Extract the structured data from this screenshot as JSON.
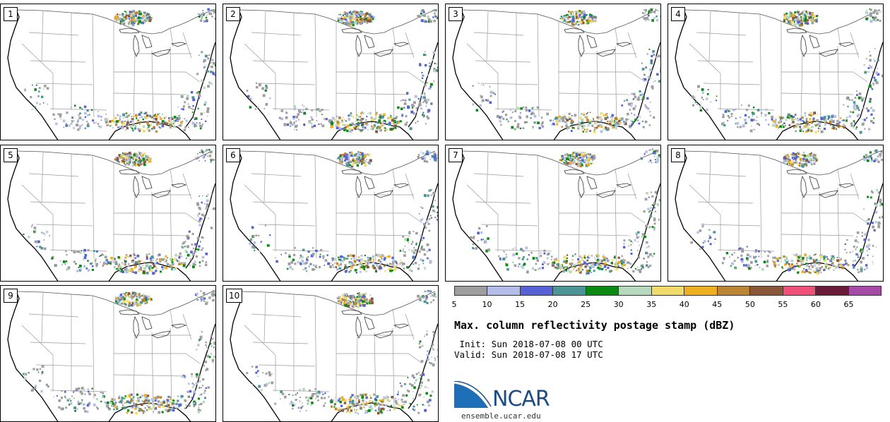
{
  "panels": [
    "1",
    "2",
    "3",
    "4",
    "5",
    "6",
    "7",
    "8",
    "9",
    "10"
  ],
  "colorbar": {
    "colors": [
      "#9e9e9e",
      "#b3bde8",
      "#5462d6",
      "#4c9496",
      "#0a8a12",
      "#b6d8bd",
      "#f0dc6a",
      "#eeb020",
      "#bb8634",
      "#8a5738",
      "#f04f77",
      "#6a1b3a",
      "#a64aa8"
    ],
    "ticks": [
      "5",
      "10",
      "15",
      "20",
      "25",
      "30",
      "35",
      "40",
      "45",
      "50",
      "55",
      "60",
      "65"
    ]
  },
  "title": "Max. column reflectivity postage stamp (dBZ)",
  "init": " Init: Sun 2018-07-08 00 UTC",
  "valid": "Valid: Sun 2018-07-08 17 UTC",
  "logo": {
    "name": "NCAR",
    "site": "ensemble.ucar.edu"
  }
}
